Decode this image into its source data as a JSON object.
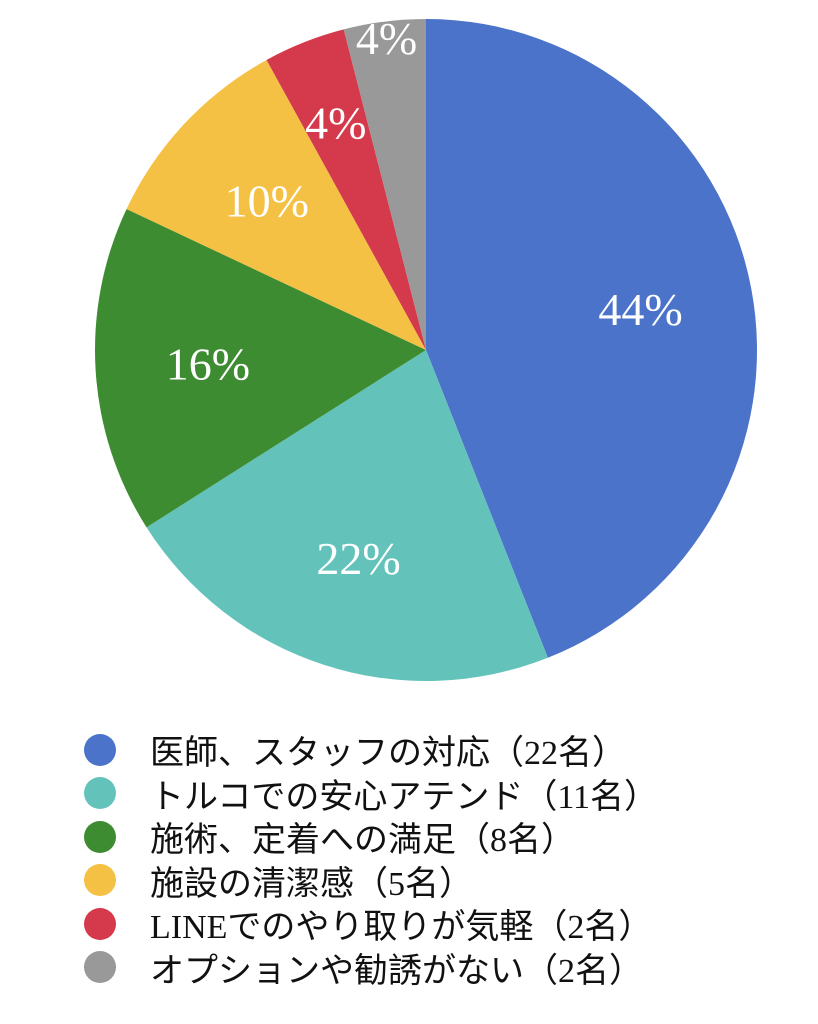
{
  "chart_data": {
    "type": "pie",
    "start": "12 o'clock, clockwise",
    "categories": [
      "医師、スタッフの対応（22名）",
      "トルコでの安心アテンド（11名）",
      "施術、定着への満足（8名）",
      "施設の清潔感（5名）",
      "LINEでのやり取りが気軽（2名）",
      "オプションや勧誘がない（2名）"
    ],
    "values": [
      22,
      11,
      8,
      5,
      2,
      2
    ],
    "data_labels": [
      "44%",
      "22%",
      "16%",
      "10%",
      "4%",
      "4%"
    ],
    "colors": [
      "#4a73c9",
      "#63c3bb",
      "#3d8c31",
      "#f5c144",
      "#d43a4b",
      "#999999"
    ],
    "legend_placement": "bottom"
  }
}
